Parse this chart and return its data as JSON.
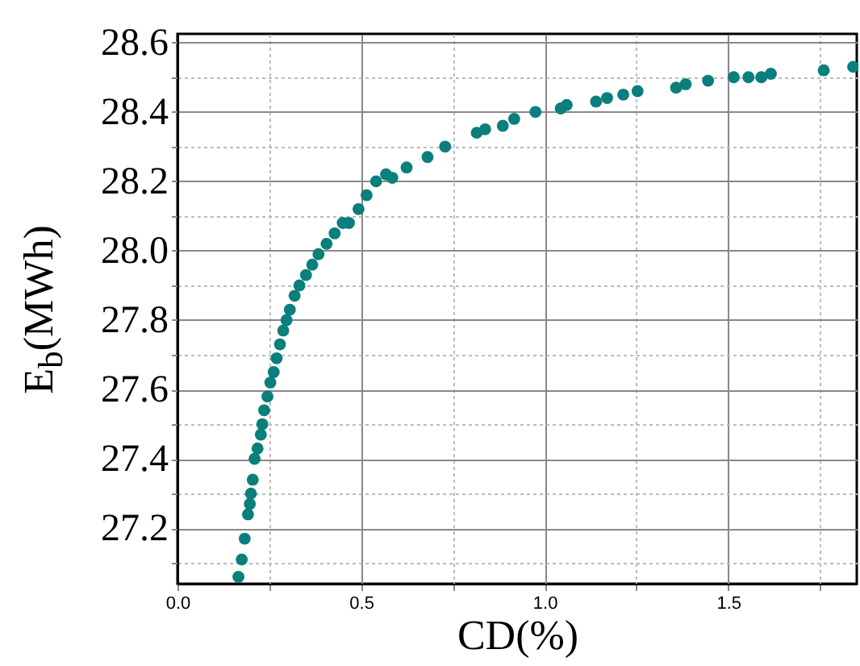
{
  "chart_data": {
    "type": "scatter",
    "xlabel": "CD(%)",
    "ylabel": "E$_{b}$(MWh)",
    "xlim": [
      0,
      1.85
    ],
    "ylim": [
      27.04,
      28.625
    ],
    "xticks": [
      "0.0",
      {
        "value": 0.25,
        "label": null
      },
      {
        "value": 0.5,
        "label": "0.5"
      },
      {
        "value": 0.75,
        "label": null
      },
      {
        "value": 1,
        "label": "1.0"
      },
      {
        "value": 1.25,
        "label": null
      },
      {
        "value": 1.5,
        "label": "1.5"
      },
      {
        "value": 1.75,
        "label": null
      }
    ],
    "yticks": [
      {
        "value": 27.1,
        "label": null
      },
      {
        "value": 27.2,
        "label": "27.2"
      },
      {
        "value": 27.3,
        "label": null
      },
      {
        "value": 27.4,
        "label": "27.4"
      },
      {
        "value": 27.5,
        "label": null
      },
      {
        "value": 27.6,
        "label": "27.6"
      },
      {
        "value": 27.7,
        "label": null
      },
      {
        "value": 27.8,
        "label": "27.8"
      },
      {
        "value": 27.9,
        "label": null
      },
      {
        "value": 28,
        "label": "28.0"
      },
      {
        "value": 28.1,
        "label": null
      },
      {
        "value": 28.2,
        "label": "28.2"
      },
      {
        "value": 28.3,
        "label": null
      },
      {
        "value": 28.4,
        "label": "28.4"
      },
      {
        "value": 28.5,
        "label": null
      },
      {
        "value": 28.6,
        "label": "28.6"
      }
    ],
    "grid": true,
    "marker": "circle",
    "series": [
      {
        "color": "#0a7f7c",
        "x": [
          0.166,
          0.175,
          0.183,
          0.192,
          0.197,
          0.2,
          0.205,
          0.21,
          0.218,
          0.227,
          0.231,
          0.236,
          0.245,
          0.253,
          0.262,
          0.27,
          0.279,
          0.288,
          0.297,
          0.306,
          0.319,
          0.332,
          0.35,
          0.367,
          0.384,
          0.406,
          0.428,
          0.45,
          0.467,
          0.493,
          0.515,
          0.541,
          0.568,
          0.585,
          0.624,
          0.681,
          0.729,
          0.815,
          0.838,
          0.886,
          0.917,
          0.975,
          1.044,
          1.06,
          1.14,
          1.17,
          1.214,
          1.253,
          1.358,
          1.384,
          1.445,
          1.515,
          1.555,
          1.59,
          1.616,
          1.76,
          1.84
        ],
        "values": [
          27.06,
          27.11,
          27.17,
          27.24,
          27.27,
          27.3,
          27.34,
          27.4,
          27.43,
          27.47,
          27.5,
          27.54,
          27.58,
          27.62,
          27.65,
          27.69,
          27.73,
          27.77,
          27.8,
          27.83,
          27.87,
          27.9,
          27.93,
          27.96,
          27.99,
          28.02,
          28.05,
          28.08,
          28.08,
          28.12,
          28.16,
          28.2,
          28.22,
          28.21,
          28.24,
          28.27,
          28.3,
          28.34,
          28.35,
          28.36,
          28.38,
          28.4,
          28.41,
          28.42,
          28.43,
          28.44,
          28.45,
          28.46,
          28.47,
          28.48,
          28.49,
          28.5,
          28.5,
          28.5,
          28.51,
          28.52,
          28.53
        ]
      }
    ]
  }
}
